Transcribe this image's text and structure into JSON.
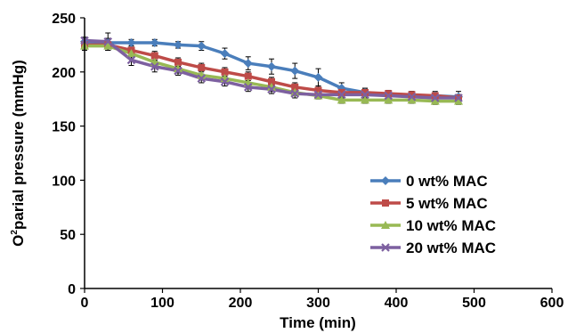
{
  "chart_data": {
    "type": "line",
    "title": "",
    "xlabel": "Time (min)",
    "ylabel": {
      "pre": "O",
      "sup": "2",
      "post": "parial pressure (mmHg)"
    },
    "xlim": [
      0,
      600
    ],
    "ylim": [
      0,
      250
    ],
    "xticks": [
      0,
      100,
      200,
      300,
      400,
      500,
      600
    ],
    "yticks": [
      0,
      50,
      100,
      150,
      200,
      250
    ],
    "grid": false,
    "legend": "center-right",
    "x": [
      0,
      30,
      60,
      90,
      120,
      150,
      180,
      210,
      240,
      270,
      300,
      330,
      360,
      390,
      420,
      450,
      480
    ],
    "series": [
      {
        "name": "0 wt% MAC",
        "color": "#4a7ebb",
        "marker": "diamond",
        "values": [
          228,
          227,
          227,
          227,
          225,
          224,
          217,
          208,
          205,
          201,
          195,
          185,
          181,
          179,
          178,
          178,
          177
        ],
        "errors": [
          4,
          4,
          3,
          3,
          3,
          4,
          5,
          6,
          7,
          7,
          8,
          5,
          4,
          3,
          4,
          4,
          5
        ]
      },
      {
        "name": "5 wt% MAC",
        "color": "#be4b48",
        "marker": "square",
        "values": [
          225,
          225,
          220,
          215,
          209,
          204,
          200,
          196,
          191,
          186,
          183,
          181,
          181,
          180,
          179,
          178,
          176
        ],
        "errors": [
          4,
          5,
          4,
          4,
          4,
          4,
          4,
          4,
          4,
          4,
          4,
          3,
          3,
          3,
          3,
          3,
          3
        ]
      },
      {
        "name": "10 wt% MAC",
        "color": "#98b954",
        "marker": "triangle",
        "values": [
          224,
          224,
          217,
          209,
          203,
          197,
          194,
          190,
          186,
          181,
          178,
          174,
          174,
          174,
          174,
          173,
          173
        ],
        "errors": [
          4,
          4,
          4,
          4,
          4,
          4,
          4,
          4,
          4,
          3,
          3,
          3,
          3,
          3,
          3,
          3,
          3
        ]
      },
      {
        "name": "20 wt% MAC",
        "color": "#7d60a0",
        "marker": "x",
        "values": [
          229,
          228,
          211,
          205,
          201,
          194,
          191,
          186,
          184,
          180,
          179,
          179,
          179,
          178,
          177,
          176,
          176
        ],
        "errors": [
          3,
          8,
          5,
          5,
          4,
          4,
          4,
          4,
          4,
          4,
          3,
          3,
          3,
          3,
          3,
          3,
          3
        ]
      }
    ]
  }
}
